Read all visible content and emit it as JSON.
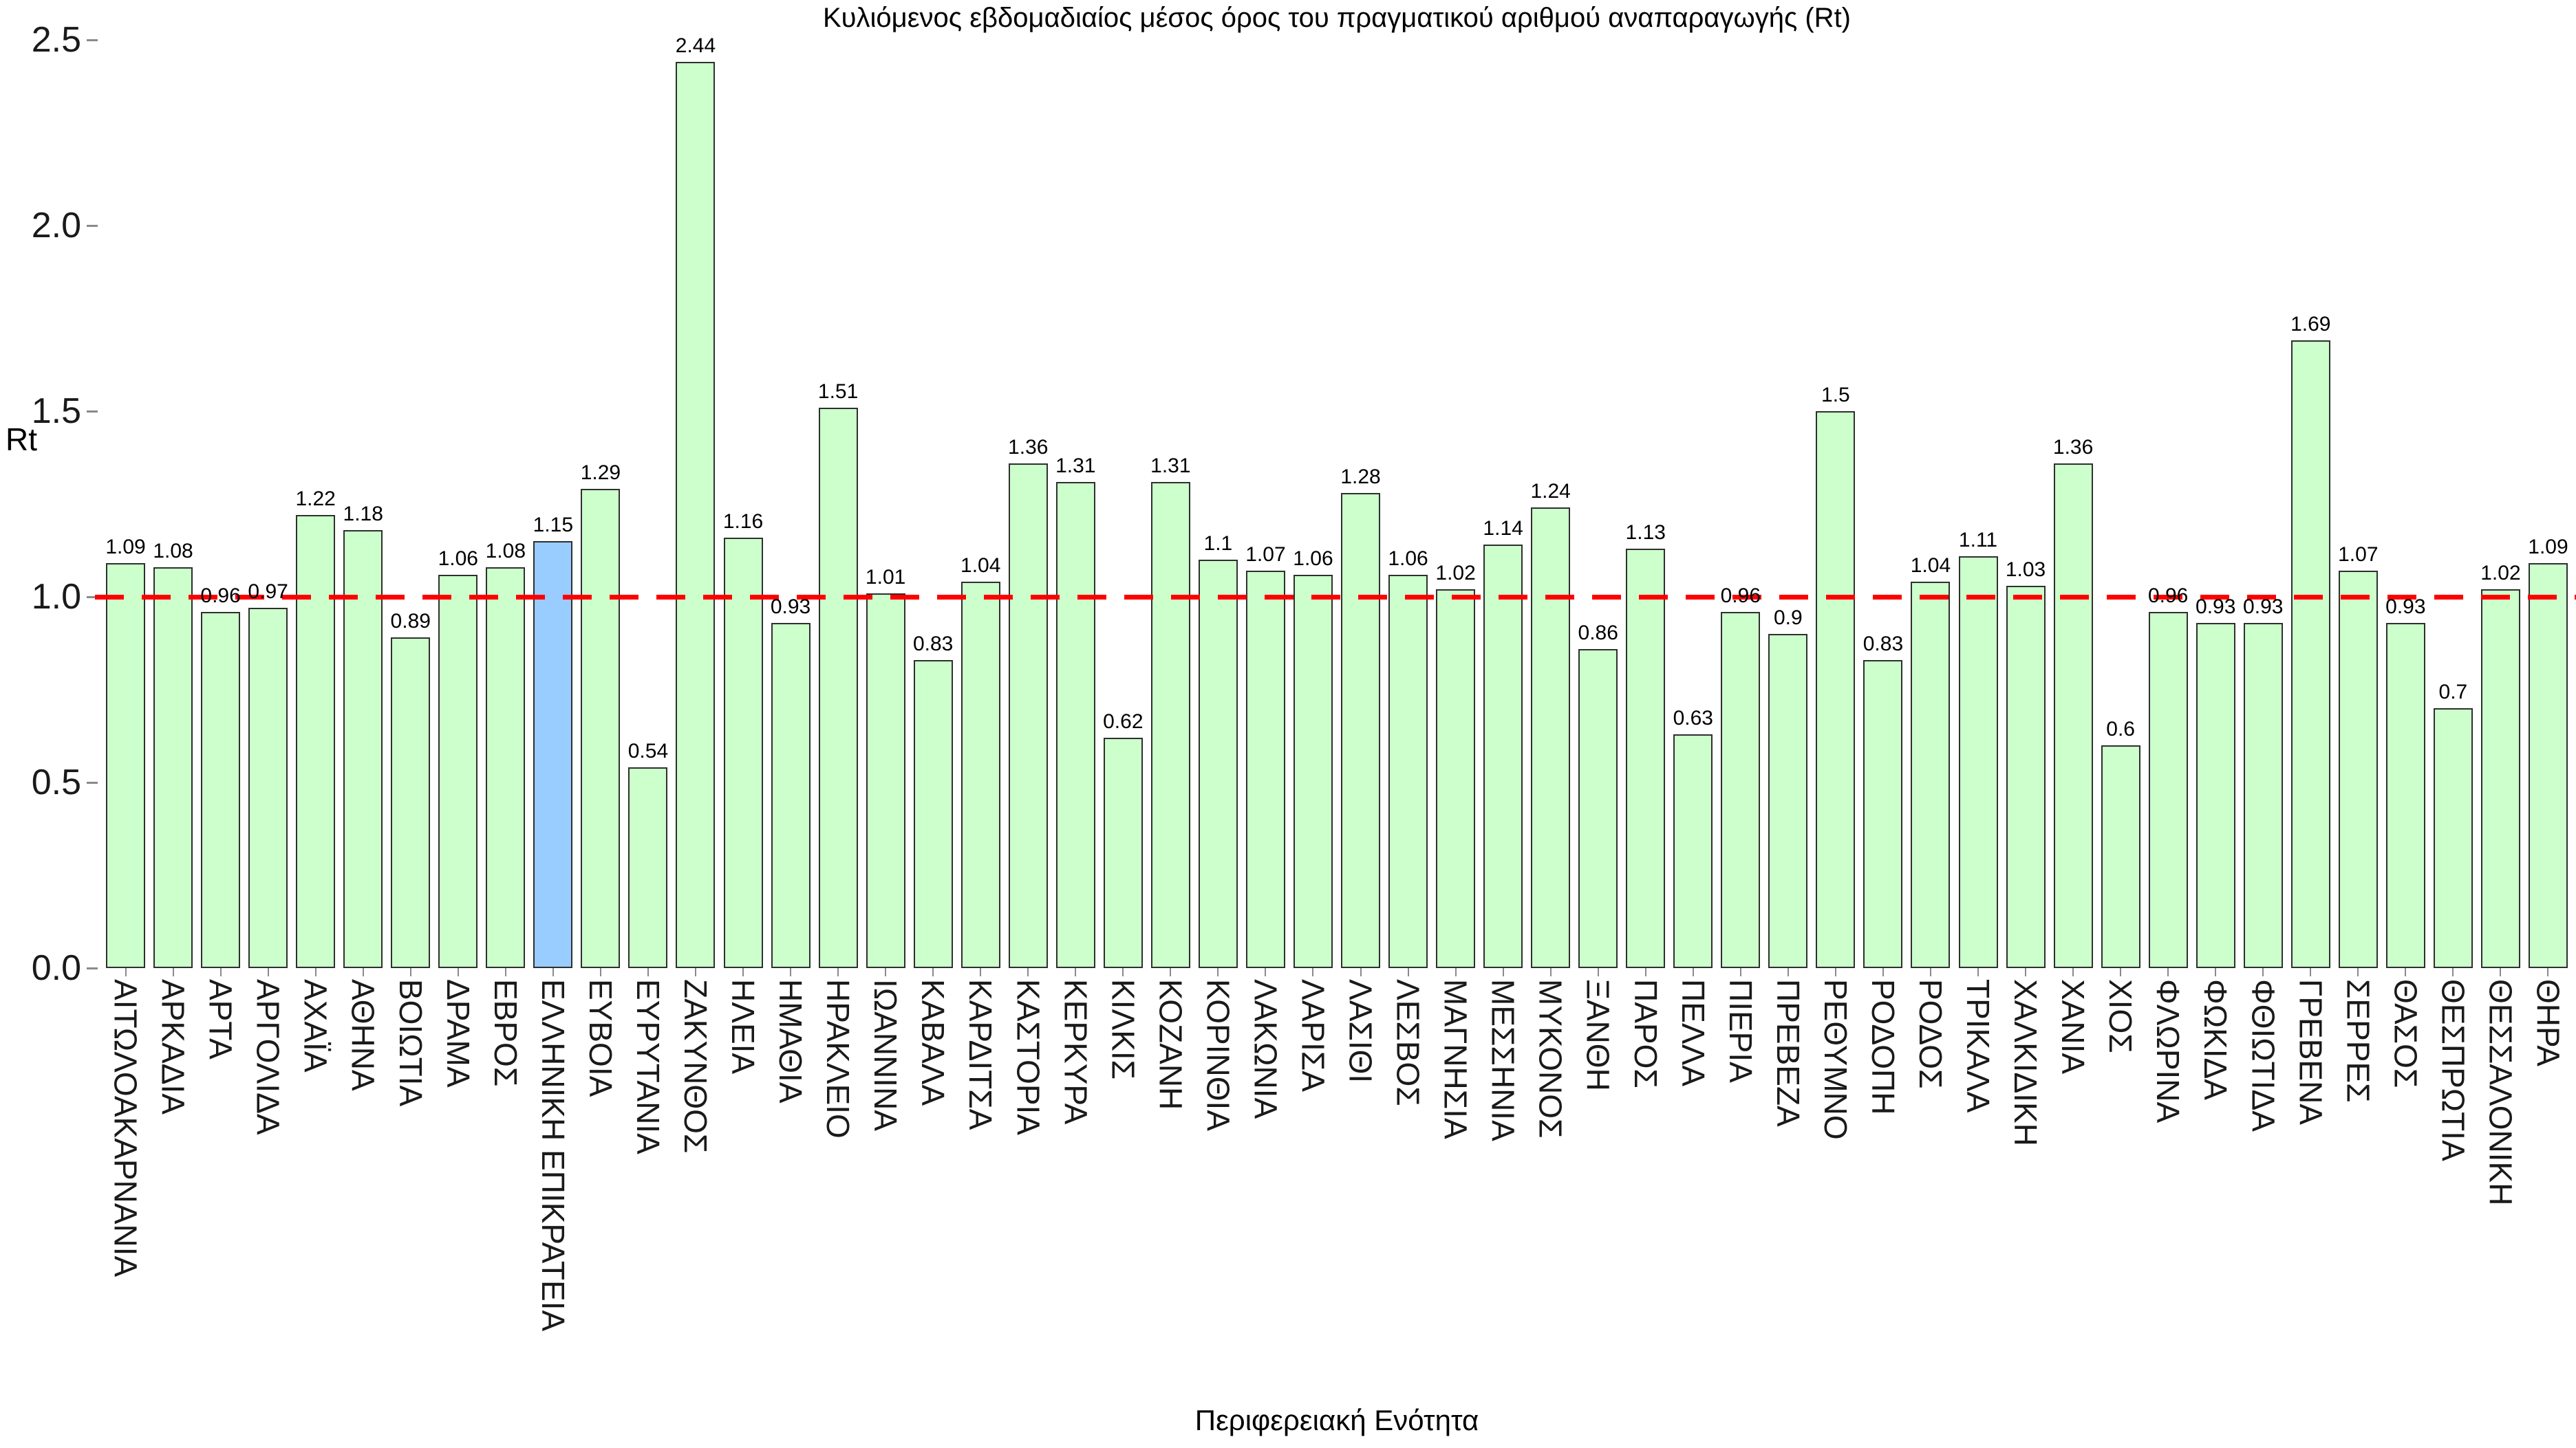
{
  "colors": {
    "bar": "#ccffcc",
    "highlight_bar": "#99ccff",
    "bar_border": "#2f2f2f",
    "reference_line": "#ff0000",
    "text": "#000000"
  },
  "chart_data": {
    "type": "bar",
    "title": "Κυλιόμενος εβδομαδιαίος μέσος όρος του πραγματικού αριθμού αναπαραγωγής (Rt)",
    "xlabel": "Περιφερειακή Ενότητα",
    "ylabel": "Rt",
    "ylim": [
      0,
      2.5
    ],
    "yticks": [
      "0.0",
      "0.5",
      "1.0",
      "1.5",
      "2.0",
      "2.5"
    ],
    "grid": false,
    "legend": "none",
    "reference_line_y": 1.0,
    "reference_line_style": "dashed",
    "highlight_category": "ΕΛΛΗΝΙΚΗ ΕΠΙΚΡΑΤΕΙΑ",
    "categories": [
      "ΑΙΤΩΛΟΑΚΑΡΝΑΝΙΑ",
      "ΑΡΚΑΔΙΑ",
      "ΑΡΤΑ",
      "ΑΡΓΟΛΙΔΑ",
      "ΑΧΑΪΑ",
      "ΑΘΗΝΑ",
      "ΒΟΙΩΤΙΑ",
      "ΔΡΑΜΑ",
      "ΕΒΡΟΣ",
      "ΕΛΛΗΝΙΚΗ ΕΠΙΚΡΑΤΕΙΑ",
      "ΕΥΒΟΙΑ",
      "ΕΥΡΥΤΑΝΙΑ",
      "ΖΑΚΥΝΘΟΣ",
      "ΗΛΕΙΑ",
      "ΗΜΑΘΙΑ",
      "ΗΡΑΚΛΕΙΟ",
      "ΙΩΑΝΝΙΝΑ",
      "ΚΑΒΑΛΑ",
      "ΚΑΡΔΙΤΣΑ",
      "ΚΑΣΤΟΡΙΑ",
      "ΚΕΡΚΥΡΑ",
      "ΚΙΛΚΙΣ",
      "ΚΟΖΑΝΗ",
      "ΚΟΡΙΝΘΙΑ",
      "ΛΑΚΩΝΙΑ",
      "ΛΑΡΙΣΑ",
      "ΛΑΣΙΘΙ",
      "ΛΕΣΒΟΣ",
      "ΜΑΓΝΗΣΙΑ",
      "ΜΕΣΣΗΝΙΑ",
      "ΜΥΚΟΝΟΣ",
      "ΞΑΝΘΗ",
      "ΠΑΡΟΣ",
      "ΠΕΛΛΑ",
      "ΠΙΕΡΙΑ",
      "ΠΡΕΒΕΖΑ",
      "ΡΕΘΥΜΝΟ",
      "ΡΟΔΟΠΗ",
      "ΡΟΔΟΣ",
      "ΤΡΙΚΑΛΑ",
      "ΧΑΛΚΙΔΙΚΗ",
      "ΧΑΝΙΑ",
      "ΧΙΟΣ",
      "ΦΛΩΡΙΝΑ",
      "ΦΩΚΙΔΑ",
      "ΦΘΙΩΤΙΔΑ",
      "ΓΡΕΒΕΝΑ",
      "ΣΕΡΡΕΣ",
      "ΘΑΣΟΣ",
      "ΘΕΣΠΡΩΤΙΑ",
      "ΘΕΣΣΑΛΟΝΙΚΗ",
      "ΘΗΡΑ"
    ],
    "values": [
      1.09,
      1.08,
      0.96,
      0.97,
      1.22,
      1.18,
      0.89,
      1.06,
      1.08,
      1.15,
      1.29,
      0.54,
      2.44,
      1.16,
      0.93,
      1.51,
      1.01,
      0.83,
      1.04,
      1.36,
      1.31,
      0.62,
      1.31,
      1.1,
      1.07,
      1.06,
      1.28,
      1.06,
      1.02,
      1.14,
      1.24,
      0.86,
      1.13,
      0.63,
      0.96,
      0.9,
      1.5,
      0.83,
      1.04,
      1.11,
      1.03,
      1.36,
      0.6,
      0.96,
      0.93,
      0.93,
      1.69,
      1.07,
      0.93,
      0.7,
      1.02,
      1.09
    ],
    "value_labels": [
      "1.09",
      "1.08",
      "0.96",
      "0.97",
      "1.22",
      "1.18",
      "0.89",
      "1.06",
      "1.08",
      "1.15",
      "1.29",
      "0.54",
      "2.44",
      "1.16",
      "0.93",
      "1.51",
      "1.01",
      "0.83",
      "1.04",
      "1.36",
      "1.31",
      "0.62",
      "1.31",
      "1.1",
      "1.07",
      "1.06",
      "1.28",
      "1.06",
      "1.02",
      "1.14",
      "1.24",
      "0.86",
      "1.13",
      "0.63",
      "0.96",
      "0.9",
      "1.5",
      "0.83",
      "1.04",
      "1.11",
      "1.03",
      "1.36",
      "0.6",
      "0.96",
      "0.93",
      "0.93",
      "1.69",
      "1.07",
      "0.93",
      "0.7",
      "1.02",
      "1.09"
    ]
  }
}
